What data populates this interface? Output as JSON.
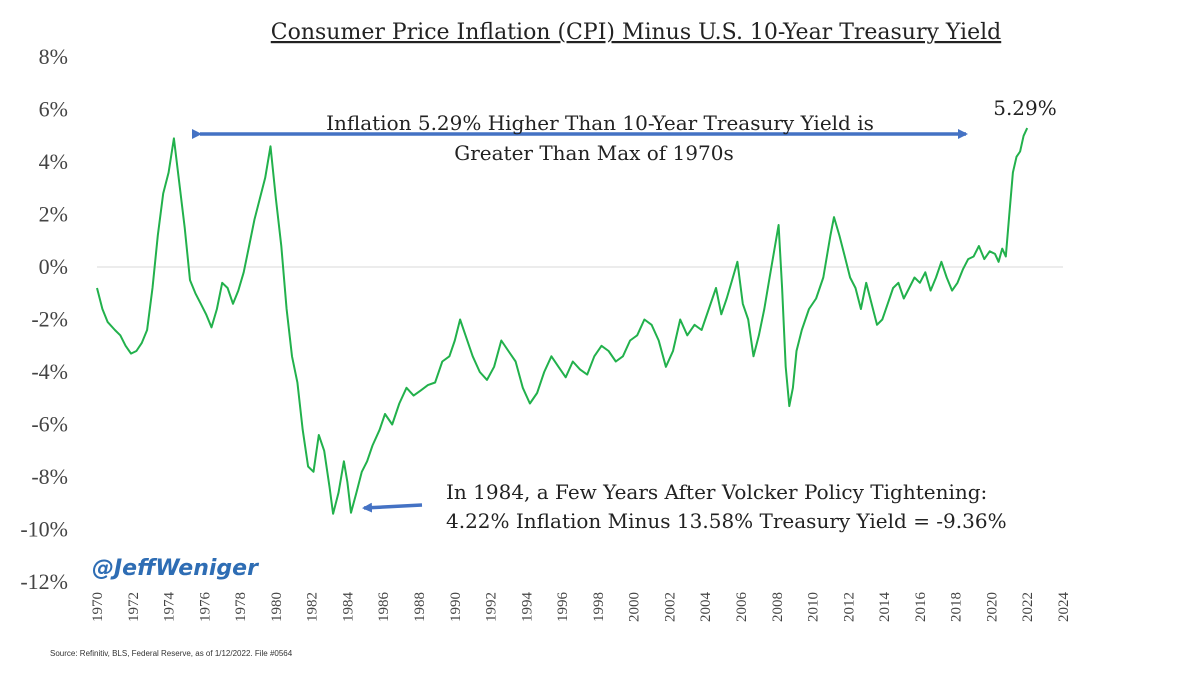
{
  "chart_data": {
    "type": "line",
    "title": "Consumer Price Inflation (CPI) Minus U.S. 10-Year Treasury Yield",
    "xlabel": "",
    "ylabel": "",
    "xlim": [
      1970,
      2024
    ],
    "ylim": [
      -12,
      8
    ],
    "x_ticks": [
      "1970",
      "1972",
      "1974",
      "1976",
      "1978",
      "1980",
      "1982",
      "1984",
      "1986",
      "1988",
      "1990",
      "1992",
      "1994",
      "1996",
      "1998",
      "2000",
      "2002",
      "2004",
      "2006",
      "2008",
      "2010",
      "2012",
      "2014",
      "2016",
      "2018",
      "2020",
      "2022",
      "2024"
    ],
    "y_ticks": [
      {
        "v": 8,
        "label": "8%"
      },
      {
        "v": 6,
        "label": "6%"
      },
      {
        "v": 4,
        "label": "4%"
      },
      {
        "v": 2,
        "label": "2%"
      },
      {
        "v": 0,
        "label": "0%"
      },
      {
        "v": -2,
        "label": "-2%"
      },
      {
        "v": -4,
        "label": "-4%"
      },
      {
        "v": -6,
        "label": "-6%"
      },
      {
        "v": -8,
        "label": "-8%"
      },
      {
        "v": -10,
        "label": "-10%"
      },
      {
        "v": -12,
        "label": "-12%"
      }
    ],
    "zero_line": true,
    "series": [
      {
        "color": "#22b14c",
        "points": [
          [
            1970.0,
            -0.8
          ],
          [
            1970.3,
            -1.6
          ],
          [
            1970.6,
            -2.1
          ],
          [
            1971.0,
            -2.4
          ],
          [
            1971.3,
            -2.6
          ],
          [
            1971.6,
            -3.0
          ],
          [
            1971.9,
            -3.3
          ],
          [
            1972.2,
            -3.2
          ],
          [
            1972.5,
            -2.9
          ],
          [
            1972.8,
            -2.4
          ],
          [
            1973.1,
            -0.8
          ],
          [
            1973.4,
            1.2
          ],
          [
            1973.7,
            2.8
          ],
          [
            1974.0,
            3.6
          ],
          [
            1974.3,
            4.9
          ],
          [
            1974.6,
            3.2
          ],
          [
            1974.9,
            1.5
          ],
          [
            1975.2,
            -0.5
          ],
          [
            1975.5,
            -1.0
          ],
          [
            1975.8,
            -1.4
          ],
          [
            1976.1,
            -1.8
          ],
          [
            1976.4,
            -2.3
          ],
          [
            1976.7,
            -1.6
          ],
          [
            1977.0,
            -0.6
          ],
          [
            1977.3,
            -0.8
          ],
          [
            1977.6,
            -1.4
          ],
          [
            1977.9,
            -0.9
          ],
          [
            1978.2,
            -0.2
          ],
          [
            1978.5,
            0.8
          ],
          [
            1978.8,
            1.8
          ],
          [
            1979.1,
            2.6
          ],
          [
            1979.4,
            3.4
          ],
          [
            1979.7,
            4.6
          ],
          [
            1980.0,
            2.6
          ],
          [
            1980.3,
            0.8
          ],
          [
            1980.6,
            -1.6
          ],
          [
            1980.9,
            -3.4
          ],
          [
            1981.2,
            -4.4
          ],
          [
            1981.5,
            -6.2
          ],
          [
            1981.8,
            -7.6
          ],
          [
            1982.1,
            -7.8
          ],
          [
            1982.4,
            -6.4
          ],
          [
            1982.7,
            -7.0
          ],
          [
            1983.0,
            -8.4
          ],
          [
            1983.2,
            -9.4
          ],
          [
            1983.5,
            -8.6
          ],
          [
            1983.8,
            -7.4
          ],
          [
            1984.0,
            -8.2
          ],
          [
            1984.2,
            -9.36
          ],
          [
            1984.5,
            -8.6
          ],
          [
            1984.8,
            -7.8
          ],
          [
            1985.1,
            -7.4
          ],
          [
            1985.4,
            -6.8
          ],
          [
            1985.8,
            -6.2
          ],
          [
            1986.1,
            -5.6
          ],
          [
            1986.5,
            -6.0
          ],
          [
            1986.9,
            -5.2
          ],
          [
            1987.3,
            -4.6
          ],
          [
            1987.7,
            -4.9
          ],
          [
            1988.1,
            -4.7
          ],
          [
            1988.5,
            -4.5
          ],
          [
            1988.9,
            -4.4
          ],
          [
            1989.3,
            -3.6
          ],
          [
            1989.7,
            -3.4
          ],
          [
            1990.0,
            -2.8
          ],
          [
            1990.3,
            -2.0
          ],
          [
            1990.6,
            -2.6
          ],
          [
            1991.0,
            -3.4
          ],
          [
            1991.4,
            -4.0
          ],
          [
            1991.8,
            -4.3
          ],
          [
            1992.2,
            -3.8
          ],
          [
            1992.6,
            -2.8
          ],
          [
            1993.0,
            -3.2
          ],
          [
            1993.4,
            -3.6
          ],
          [
            1993.8,
            -4.6
          ],
          [
            1994.2,
            -5.2
          ],
          [
            1994.6,
            -4.8
          ],
          [
            1995.0,
            -4.0
          ],
          [
            1995.4,
            -3.4
          ],
          [
            1995.8,
            -3.8
          ],
          [
            1996.2,
            -4.2
          ],
          [
            1996.6,
            -3.6
          ],
          [
            1997.0,
            -3.9
          ],
          [
            1997.4,
            -4.1
          ],
          [
            1997.8,
            -3.4
          ],
          [
            1998.2,
            -3.0
          ],
          [
            1998.6,
            -3.2
          ],
          [
            1999.0,
            -3.6
          ],
          [
            1999.4,
            -3.4
          ],
          [
            1999.8,
            -2.8
          ],
          [
            2000.2,
            -2.6
          ],
          [
            2000.6,
            -2.0
          ],
          [
            2001.0,
            -2.2
          ],
          [
            2001.4,
            -2.8
          ],
          [
            2001.8,
            -3.8
          ],
          [
            2002.2,
            -3.2
          ],
          [
            2002.6,
            -2.0
          ],
          [
            2003.0,
            -2.6
          ],
          [
            2003.4,
            -2.2
          ],
          [
            2003.8,
            -2.4
          ],
          [
            2004.2,
            -1.6
          ],
          [
            2004.6,
            -0.8
          ],
          [
            2004.9,
            -1.8
          ],
          [
            2005.2,
            -1.2
          ],
          [
            2005.5,
            -0.5
          ],
          [
            2005.8,
            0.2
          ],
          [
            2006.1,
            -1.4
          ],
          [
            2006.4,
            -2.0
          ],
          [
            2006.7,
            -3.4
          ],
          [
            2007.0,
            -2.6
          ],
          [
            2007.3,
            -1.6
          ],
          [
            2007.6,
            -0.4
          ],
          [
            2007.9,
            0.8
          ],
          [
            2008.1,
            1.6
          ],
          [
            2008.3,
            -0.8
          ],
          [
            2008.5,
            -3.8
          ],
          [
            2008.7,
            -5.3
          ],
          [
            2008.9,
            -4.6
          ],
          [
            2009.1,
            -3.2
          ],
          [
            2009.4,
            -2.4
          ],
          [
            2009.8,
            -1.6
          ],
          [
            2010.2,
            -1.2
          ],
          [
            2010.6,
            -0.4
          ],
          [
            2011.0,
            1.2
          ],
          [
            2011.2,
            1.9
          ],
          [
            2011.5,
            1.2
          ],
          [
            2011.8,
            0.4
          ],
          [
            2012.1,
            -0.4
          ],
          [
            2012.4,
            -0.8
          ],
          [
            2012.7,
            -1.6
          ],
          [
            2013.0,
            -0.6
          ],
          [
            2013.3,
            -1.4
          ],
          [
            2013.6,
            -2.2
          ],
          [
            2013.9,
            -2.0
          ],
          [
            2014.2,
            -1.4
          ],
          [
            2014.5,
            -0.8
          ],
          [
            2014.8,
            -0.6
          ],
          [
            2015.1,
            -1.2
          ],
          [
            2015.4,
            -0.8
          ],
          [
            2015.7,
            -0.4
          ],
          [
            2016.0,
            -0.6
          ],
          [
            2016.3,
            -0.2
          ],
          [
            2016.6,
            -0.9
          ],
          [
            2016.9,
            -0.4
          ],
          [
            2017.2,
            0.2
          ],
          [
            2017.5,
            -0.4
          ],
          [
            2017.8,
            -0.9
          ],
          [
            2018.1,
            -0.6
          ],
          [
            2018.4,
            -0.1
          ],
          [
            2018.7,
            0.3
          ],
          [
            2019.0,
            0.4
          ],
          [
            2019.3,
            0.8
          ],
          [
            2019.6,
            0.3
          ],
          [
            2019.9,
            0.6
          ],
          [
            2020.2,
            0.5
          ],
          [
            2020.4,
            0.2
          ],
          [
            2020.6,
            0.7
          ],
          [
            2020.8,
            0.4
          ],
          [
            2021.0,
            2.0
          ],
          [
            2021.2,
            3.6
          ],
          [
            2021.4,
            4.2
          ],
          [
            2021.6,
            4.4
          ],
          [
            2021.8,
            5.0
          ],
          [
            2022.0,
            5.29
          ]
        ]
      }
    ],
    "annotations": {
      "top_line1": "Inflation 5.29% Higher Than 10-Year Treasury Yield is",
      "top_line2": "Greater Than Max of 1970s",
      "end_value_label": "5.29%",
      "bottom_line1": "In 1984, a Few Years After Volcker Policy Tightening:",
      "bottom_line2": "4.22% Inflation Minus 13.58% Treasury Yield = -9.36%",
      "arrow_color": "#4472c4"
    }
  },
  "branding": {
    "handle": "@JeffWeniger",
    "source": "Source: Refinitiv, BLS, Federal Reserve, as of 1/12/2022. File #0564"
  }
}
